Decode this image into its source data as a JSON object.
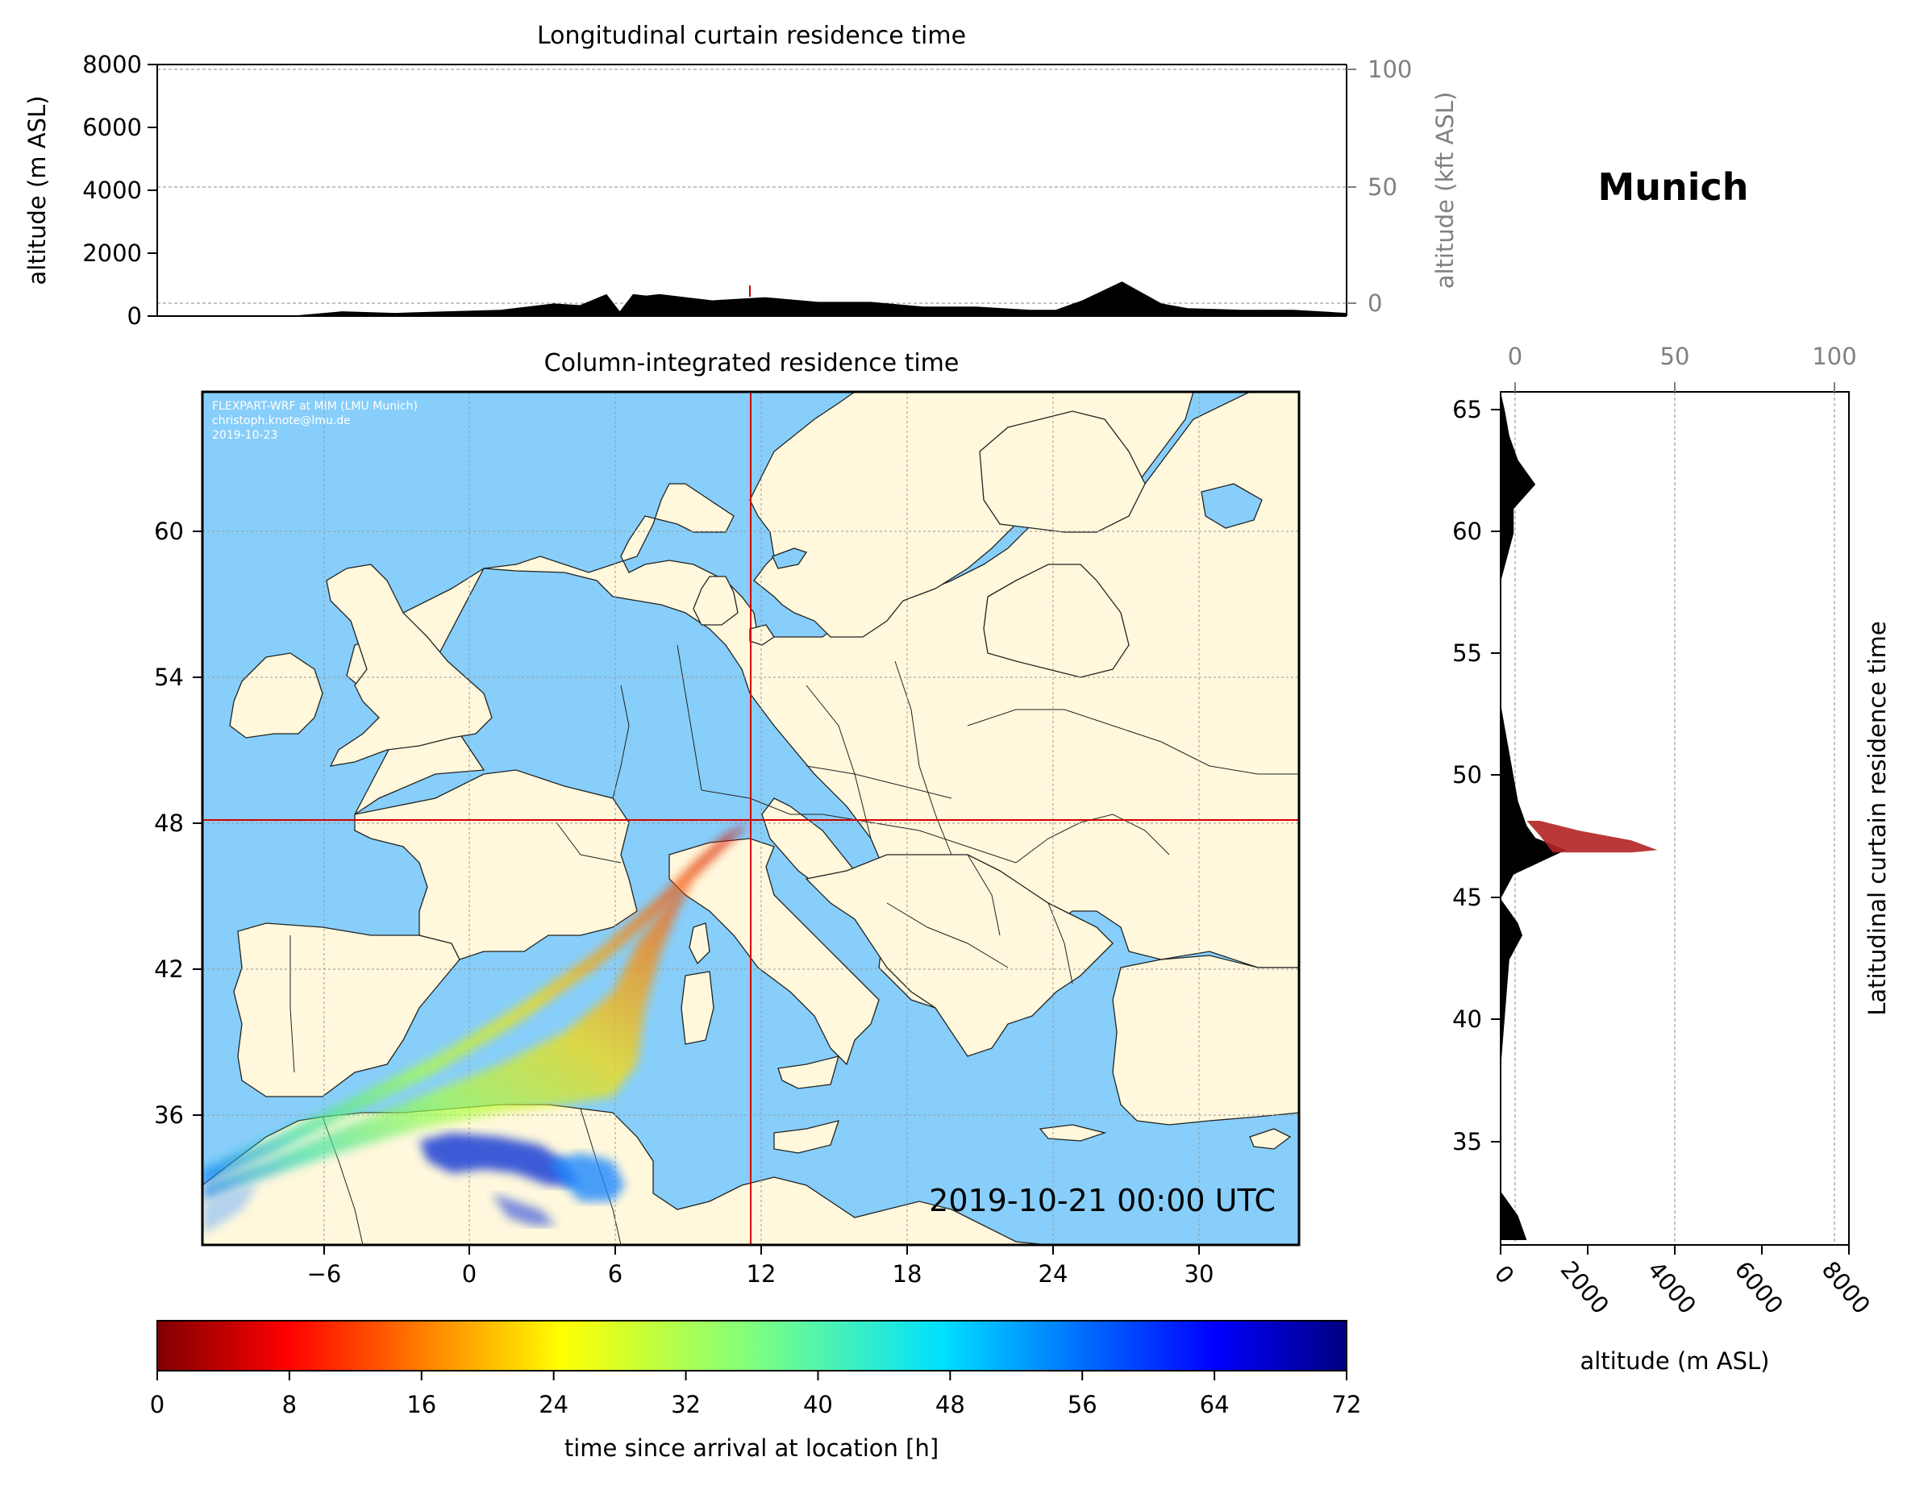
{
  "location": {
    "name": "Munich",
    "lon": 11.57,
    "lat": 48.14
  },
  "colors": {
    "ocean": "#87cefa",
    "land": "#fff8dc",
    "crosshair": "#d40000",
    "terrain": "#000000",
    "axis_secondary": "#808080"
  },
  "top_panel": {
    "title": "Longitudinal curtain residence time",
    "ylabel": "altitude (m ASL)",
    "ylabel_right": "altitude (kft ASL)",
    "yticks": [
      "0",
      "2000",
      "4000",
      "6000",
      "8000"
    ],
    "yticks_right": [
      "0",
      "50",
      "100"
    ]
  },
  "map_panel": {
    "title": "Column-integrated residence time",
    "credit_lines": [
      "FLEXPART-WRF at MIM (LMU Munich)",
      "christoph.knote@lmu.de",
      "2019-10-23"
    ],
    "timestamp": "2019-10-21 00:00 UTC",
    "xticks": [
      "−6",
      "0",
      "6",
      "12",
      "18",
      "24",
      "30"
    ],
    "yticks": [
      "36",
      "42",
      "48",
      "54",
      "60"
    ]
  },
  "right_panel": {
    "title": "Munich",
    "ylabel": "Latitudinal curtain residence time",
    "xlabel": "altitude (m ASL)",
    "xticks": [
      "0",
      "2000",
      "4000",
      "6000",
      "8000"
    ],
    "xticks_top": [
      "0",
      "50",
      "100"
    ],
    "yticks": [
      "35",
      "40",
      "45",
      "50",
      "55",
      "60",
      "65"
    ]
  },
  "colorbar": {
    "label": "time since arrival at location [h]",
    "ticks": [
      "0",
      "8",
      "16",
      "24",
      "32",
      "40",
      "48",
      "56",
      "64",
      "72"
    ],
    "colormap": "jet_r",
    "range": [
      0,
      72
    ]
  },
  "chart_data": [
    {
      "type": "area",
      "title": "Longitudinal curtain residence time",
      "xlabel": "",
      "ylabel": "altitude (m ASL)",
      "ylim": [
        0,
        8000
      ],
      "y2lim_kft": [
        0,
        100
      ],
      "terrain_profile": {
        "lon": [
          -11,
          -6,
          -4,
          -2,
          0,
          2,
          4,
          5,
          6,
          6.5,
          7,
          7.5,
          8,
          10,
          12,
          14,
          16,
          18,
          20,
          22,
          23,
          24,
          25.5,
          27,
          28,
          30,
          32,
          34
        ],
        "alt": [
          0,
          0,
          150,
          100,
          150,
          200,
          400,
          350,
          700,
          150,
          700,
          650,
          700,
          500,
          600,
          450,
          450,
          300,
          300,
          200,
          200,
          500,
          1100,
          400,
          250,
          200,
          200,
          100
        ]
      }
    },
    {
      "type": "area",
      "title": "Latitudinal curtain residence time",
      "xlabel": "altitude (m ASL)",
      "xlim": [
        0,
        8000
      ],
      "x2lim_kft": [
        0,
        100
      ],
      "terrain_profile": {
        "lat": [
          31,
          32,
          33,
          38,
          42.5,
          43.5,
          44,
          44.5,
          45,
          46,
          47,
          47.5,
          48,
          49,
          50,
          51,
          52,
          53,
          58,
          60,
          61,
          62,
          63,
          64,
          65,
          65.8
        ],
        "alt": [
          600,
          400,
          0,
          0,
          200,
          500,
          400,
          200,
          0,
          300,
          1500,
          800,
          600,
          400,
          300,
          200,
          100,
          0,
          0,
          300,
          300,
          800,
          400,
          200,
          100,
          0
        ]
      },
      "residence_plume": {
        "lat": [
          48.2,
          47.8,
          47.4,
          47.0,
          46.9
        ],
        "alt_max": [
          900,
          1800,
          3000,
          3600,
          3000
        ]
      }
    }
  ]
}
